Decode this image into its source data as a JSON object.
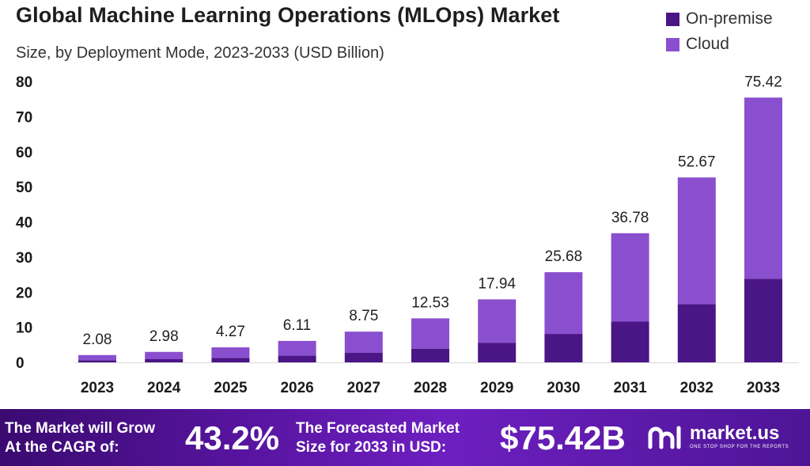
{
  "chart_data": {
    "type": "bar",
    "stacked": true,
    "title": "Global Machine Learning Operations (MLOps) Market",
    "subtitle": "Size, by Deployment Mode, 2023-2033 (USD Billion)",
    "categories": [
      "2023",
      "2024",
      "2025",
      "2026",
      "2027",
      "2028",
      "2029",
      "2030",
      "2031",
      "2032",
      "2033"
    ],
    "series": [
      {
        "name": "On-premise",
        "color": "#4a1585",
        "values": [
          0.6,
          0.9,
          1.3,
          1.9,
          2.7,
          3.9,
          5.6,
          8.1,
          11.6,
          16.6,
          23.8
        ]
      },
      {
        "name": "Cloud",
        "color": "#8a4fcf",
        "values": [
          1.48,
          2.08,
          2.97,
          4.21,
          6.05,
          8.63,
          12.34,
          17.58,
          25.18,
          36.07,
          51.62
        ]
      }
    ],
    "totals": [
      2.08,
      2.98,
      4.27,
      6.11,
      8.75,
      12.53,
      17.94,
      25.68,
      36.78,
      52.67,
      75.42
    ],
    "total_labels": [
      "2.08",
      "2.98",
      "4.27",
      "6.11",
      "8.75",
      "12.53",
      "17.94",
      "25.68",
      "36.78",
      "52.67",
      "75.42"
    ],
    "ylim": [
      0,
      80
    ],
    "yticks": [
      0,
      10,
      20,
      30,
      40,
      50,
      60,
      70,
      80
    ],
    "legend_position": "top-right",
    "grid": false
  },
  "banner": {
    "cagr_text_line1": "The Market will Grow",
    "cagr_text_line2": "At the CAGR of:",
    "cagr_value": "43.2%",
    "forecast_text_line1": "The Forecasted Market",
    "forecast_text_line2": "Size for 2033 in USD:",
    "forecast_value": "$75.42B",
    "brand_name": "market.us",
    "brand_tagline": "ONE STOP SHOP FOR THE REPORTS",
    "brand_icon": "market-us-logo-icon"
  }
}
